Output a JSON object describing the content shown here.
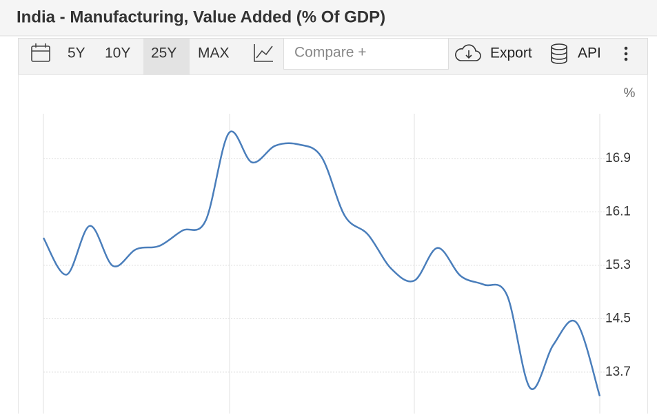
{
  "toolbar": {
    "ranges": [
      "5Y",
      "10Y",
      "25Y",
      "MAX"
    ],
    "compare": "Compare +",
    "export": "Export",
    "api": "API"
  },
  "chart_data": {
    "type": "line",
    "title": "India - Manufacturing, Value Added (% Of GDP)",
    "y_label": "%",
    "categories": [
      null,
      null,
      null,
      null,
      null,
      null,
      null,
      null,
      null,
      null,
      null,
      null,
      null,
      null,
      null,
      null,
      null,
      null,
      null,
      null,
      null,
      null,
      null,
      null,
      null
    ],
    "series": [
      {
        "name": "India",
        "color": "#4a7ebb",
        "values": [
          15.71,
          15.16,
          15.89,
          15.29,
          15.54,
          15.59,
          15.82,
          15.97,
          17.28,
          16.84,
          17.09,
          17.11,
          16.92,
          16.04,
          15.76,
          15.25,
          15.07,
          15.56,
          15.14,
          15.01,
          14.85,
          13.46,
          14.11,
          14.44,
          13.34
        ]
      }
    ],
    "ylim": [
      13.1,
      17.6
    ],
    "yticks": [
      13.7,
      14.5,
      15.3,
      16.1,
      16.9
    ],
    "grid": true
  }
}
